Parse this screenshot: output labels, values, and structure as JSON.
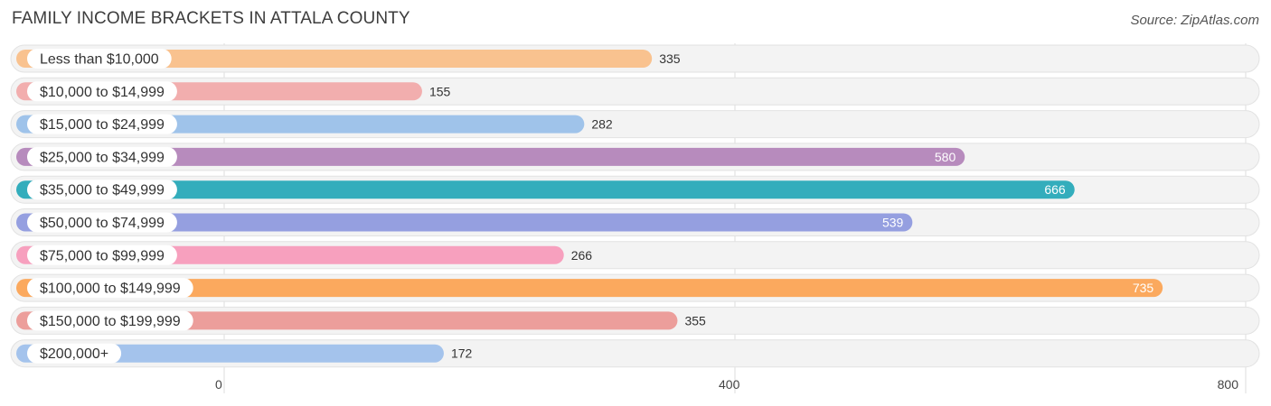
{
  "chart_data": {
    "type": "bar",
    "orientation": "horizontal",
    "title": "FAMILY INCOME BRACKETS IN ATTALA COUNTY",
    "source": "Source: ZipAtlas.com",
    "categories": [
      "Less than $10,000",
      "$10,000 to $14,999",
      "$15,000 to $24,999",
      "$25,000 to $34,999",
      "$35,000 to $49,999",
      "$50,000 to $74,999",
      "$75,000 to $99,999",
      "$100,000 to $149,999",
      "$150,000 to $199,999",
      "$200,000+"
    ],
    "values": [
      335,
      155,
      282,
      580,
      666,
      539,
      266,
      735,
      355,
      172
    ],
    "value_labels": [
      "335",
      "155",
      "282",
      "580",
      "666",
      "539",
      "266",
      "735",
      "355",
      "172"
    ],
    "colors": [
      "#f9c28f",
      "#f2aeae",
      "#9fc3ea",
      "#b78bbd",
      "#33adbc",
      "#959fe0",
      "#f7a0be",
      "#fba95e",
      "#ec9e9b",
      "#a4c3ec"
    ],
    "xlim": [
      0,
      800
    ],
    "xticks": [
      0,
      400,
      800
    ],
    "xtick_labels": [
      "0",
      "400",
      "800"
    ],
    "grid": true
  }
}
